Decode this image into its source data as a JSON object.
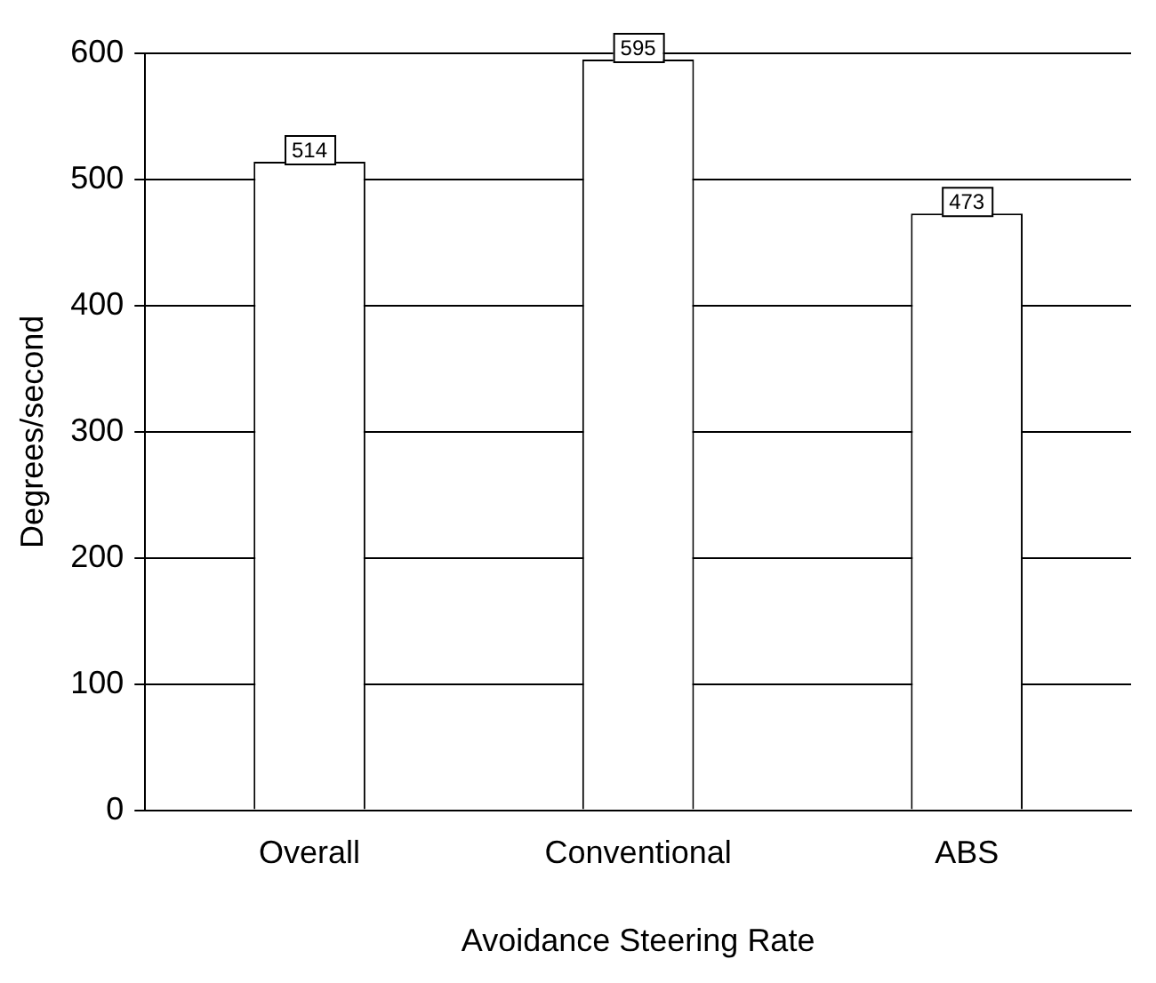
{
  "chart_data": {
    "type": "bar",
    "xlabel": "Avoidance Steering Rate",
    "ylabel": "Degrees/second",
    "categories": [
      "Overall",
      "Conventional",
      "ABS"
    ],
    "values": [
      514,
      595,
      473
    ],
    "color": "#ffffff",
    "ylim": [
      0,
      600
    ],
    "yticks": [
      0,
      100,
      200,
      300,
      400,
      500,
      600
    ],
    "grid": "y",
    "data_labels": true
  }
}
